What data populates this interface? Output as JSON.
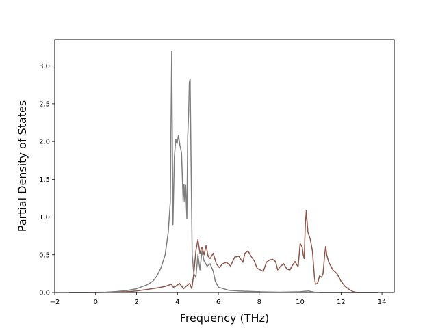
{
  "chart_data": {
    "type": "line",
    "title": "",
    "xlabel": "Frequency (THz)",
    "ylabel": "Partial Density of States",
    "xlim": [
      -2,
      14.6
    ],
    "ylim": [
      0,
      3.35
    ],
    "xticks": [
      -2,
      0,
      2,
      4,
      6,
      8,
      10,
      12,
      14
    ],
    "yticks": [
      0.0,
      0.5,
      1.0,
      1.5,
      2.0,
      2.5,
      3.0
    ],
    "xtick_labels": [
      "−2",
      "0",
      "2",
      "4",
      "6",
      "8",
      "10",
      "12",
      "14"
    ],
    "ytick_labels": [
      "0.0",
      "0.5",
      "1.0",
      "1.5",
      "2.0",
      "2.5",
      "3.0"
    ],
    "grid": false,
    "legend": "none",
    "series": [
      {
        "color": "#8c564b",
        "points": [
          [
            -1.3,
            0
          ],
          [
            0,
            0
          ],
          [
            0.5,
            0.002
          ],
          [
            1,
            0.005
          ],
          [
            1.5,
            0.01
          ],
          [
            2,
            0.02
          ],
          [
            2.5,
            0.04
          ],
          [
            3,
            0.06
          ],
          [
            3.4,
            0.08
          ],
          [
            3.7,
            0.11
          ],
          [
            3.8,
            0.07
          ],
          [
            3.9,
            0.08
          ],
          [
            4.1,
            0.12
          ],
          [
            4.3,
            0.05
          ],
          [
            4.5,
            0.1
          ],
          [
            4.6,
            0.12
          ],
          [
            4.7,
            0.05
          ],
          [
            4.8,
            0.25
          ],
          [
            4.9,
            0.55
          ],
          [
            5.0,
            0.7
          ],
          [
            5.1,
            0.52
          ],
          [
            5.2,
            0.6
          ],
          [
            5.3,
            0.5
          ],
          [
            5.4,
            0.62
          ],
          [
            5.5,
            0.48
          ],
          [
            5.6,
            0.45
          ],
          [
            5.75,
            0.52
          ],
          [
            5.9,
            0.38
          ],
          [
            6.05,
            0.33
          ],
          [
            6.2,
            0.38
          ],
          [
            6.4,
            0.4
          ],
          [
            6.6,
            0.35
          ],
          [
            6.8,
            0.47
          ],
          [
            7.0,
            0.48
          ],
          [
            7.2,
            0.4
          ],
          [
            7.3,
            0.52
          ],
          [
            7.45,
            0.55
          ],
          [
            7.6,
            0.48
          ],
          [
            7.75,
            0.42
          ],
          [
            7.9,
            0.32
          ],
          [
            8.05,
            0.3
          ],
          [
            8.2,
            0.28
          ],
          [
            8.35,
            0.4
          ],
          [
            8.5,
            0.43
          ],
          [
            8.65,
            0.44
          ],
          [
            8.8,
            0.41
          ],
          [
            8.9,
            0.3
          ],
          [
            9.05,
            0.35
          ],
          [
            9.2,
            0.38
          ],
          [
            9.35,
            0.31
          ],
          [
            9.5,
            0.3
          ],
          [
            9.6,
            0.35
          ],
          [
            9.75,
            0.41
          ],
          [
            9.9,
            0.34
          ],
          [
            10.0,
            0.65
          ],
          [
            10.1,
            0.6
          ],
          [
            10.15,
            0.5
          ],
          [
            10.2,
            0.45
          ],
          [
            10.25,
            0.88
          ],
          [
            10.3,
            1.08
          ],
          [
            10.38,
            0.8
          ],
          [
            10.5,
            0.7
          ],
          [
            10.6,
            0.55
          ],
          [
            10.7,
            0.2
          ],
          [
            10.75,
            0.11
          ],
          [
            10.85,
            0.12
          ],
          [
            10.95,
            0.22
          ],
          [
            11.05,
            0.2
          ],
          [
            11.12,
            0.25
          ],
          [
            11.2,
            0.5
          ],
          [
            11.25,
            0.61
          ],
          [
            11.3,
            0.5
          ],
          [
            11.4,
            0.4
          ],
          [
            11.5,
            0.35
          ],
          [
            11.6,
            0.3
          ],
          [
            11.8,
            0.25
          ],
          [
            12.0,
            0.15
          ],
          [
            12.2,
            0.08
          ],
          [
            12.4,
            0.04
          ],
          [
            12.6,
            0.01
          ],
          [
            12.8,
            0
          ],
          [
            13.8,
            0
          ]
        ]
      },
      {
        "color": "#7f7f7f",
        "points": [
          [
            -1.3,
            0
          ],
          [
            -0.5,
            0
          ],
          [
            0,
            0.002
          ],
          [
            0.5,
            0.005
          ],
          [
            1,
            0.012
          ],
          [
            1.5,
            0.025
          ],
          [
            2,
            0.05
          ],
          [
            2.5,
            0.1
          ],
          [
            2.8,
            0.15
          ],
          [
            3.0,
            0.22
          ],
          [
            3.2,
            0.33
          ],
          [
            3.4,
            0.5
          ],
          [
            3.55,
            0.8
          ],
          [
            3.65,
            1.2
          ],
          [
            3.72,
            3.2
          ],
          [
            3.78,
            0.9
          ],
          [
            3.85,
            1.8
          ],
          [
            3.92,
            2.03
          ],
          [
            3.98,
            1.97
          ],
          [
            4.05,
            2.08
          ],
          [
            4.12,
            1.95
          ],
          [
            4.2,
            1.85
          ],
          [
            4.28,
            1.2
          ],
          [
            4.32,
            1.43
          ],
          [
            4.36,
            1.2
          ],
          [
            4.4,
            1.42
          ],
          [
            4.46,
            0.98
          ],
          [
            4.5,
            2.05
          ],
          [
            4.55,
            2.4
          ],
          [
            4.58,
            2.78
          ],
          [
            4.62,
            2.83
          ],
          [
            4.66,
            1.85
          ],
          [
            4.72,
            0.5
          ],
          [
            4.8,
            0.25
          ],
          [
            4.9,
            0.2
          ],
          [
            5.0,
            0.5
          ],
          [
            5.1,
            0.3
          ],
          [
            5.2,
            0.55
          ],
          [
            5.3,
            0.42
          ],
          [
            5.45,
            0.35
          ],
          [
            5.6,
            0.38
          ],
          [
            5.75,
            0.28
          ],
          [
            5.85,
            0.15
          ],
          [
            6.0,
            0.07
          ],
          [
            6.5,
            0.03
          ],
          [
            7.0,
            0.02
          ],
          [
            8.0,
            0.01
          ],
          [
            9.0,
            0.004
          ],
          [
            10.0,
            0.01
          ],
          [
            10.4,
            0.02
          ],
          [
            10.7,
            0.005
          ],
          [
            11.0,
            0
          ],
          [
            13.8,
            0
          ]
        ]
      }
    ]
  }
}
